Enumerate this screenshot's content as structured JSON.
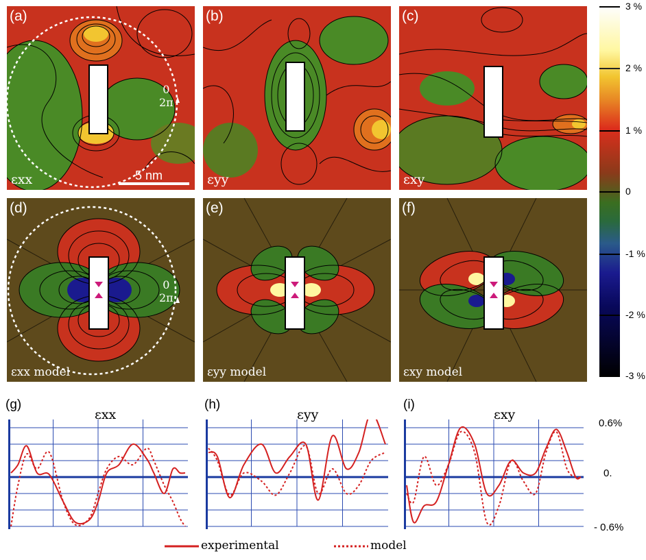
{
  "panels": [
    {
      "id": "a",
      "label": "(a)",
      "quantity": "εxx"
    },
    {
      "id": "b",
      "label": "(b)",
      "quantity": "εyy"
    },
    {
      "id": "c",
      "label": "(c)",
      "quantity": "εxy"
    },
    {
      "id": "d",
      "label": "(d)",
      "quantity": "εxx model"
    },
    {
      "id": "e",
      "label": "(e)",
      "quantity": "εyy model"
    },
    {
      "id": "f",
      "label": "(f)",
      "quantity": "εxy model"
    }
  ],
  "scale_bar": "5 nm",
  "ring_labels": {
    "zero": "0",
    "two_pi": "2π"
  },
  "colorbar": {
    "ticks": [
      "3 %",
      "2 %",
      "1 %",
      "0",
      "-1 %",
      "-2 %",
      "-3 %"
    ],
    "range": [
      -3,
      3
    ],
    "colors": {
      "max": "#ffffff",
      "high": "#f2c530",
      "mid_high": "#dc2e1c",
      "zero": "#5a4a1c",
      "mid_low": "#2a6a3c",
      "low": "#1a1a8e",
      "min": "#000000"
    }
  },
  "profiles": {
    "y_tick_labels": [
      "0.6%",
      "0.",
      "- 0.6%"
    ],
    "legend": {
      "experimental": "experimental",
      "model": "model"
    },
    "colors": {
      "line": "#d42020",
      "grid": "#2a4ab0",
      "axis": "#1a3aa0"
    }
  },
  "chart_data": [
    {
      "type": "line",
      "label": "(g)",
      "title": "εxx",
      "x": [
        0,
        0.04,
        0.09,
        0.15,
        0.22,
        0.3,
        0.37,
        0.45,
        0.5,
        0.55,
        0.62,
        0.7,
        0.78,
        0.82,
        0.88,
        0.93,
        0.97,
        1.0
      ],
      "ylim": [
        -0.6,
        0.6
      ],
      "series": [
        {
          "name": "experimental",
          "style": "solid",
          "values": [
            0.05,
            0.15,
            0.38,
            0.05,
            0.03,
            -0.3,
            -0.55,
            -0.52,
            -0.3,
            0.05,
            0.15,
            0.4,
            0.22,
            0.05,
            -0.2,
            0.1,
            0.05,
            0.05
          ]
        },
        {
          "name": "model",
          "style": "dotted",
          "values": [
            -0.6,
            -0.1,
            0.28,
            0.1,
            0.3,
            -0.3,
            -0.58,
            -0.5,
            -0.2,
            0.1,
            0.25,
            0.15,
            0.35,
            0.2,
            -0.1,
            -0.3,
            -0.5,
            -0.6
          ]
        }
      ]
    },
    {
      "type": "line",
      "label": "(h)",
      "title": "εyy",
      "x": [
        0,
        0.05,
        0.12,
        0.2,
        0.3,
        0.38,
        0.46,
        0.55,
        0.62,
        0.7,
        0.78,
        0.85,
        0.92,
        1.0
      ],
      "ylim": [
        -0.6,
        0.6
      ],
      "series": [
        {
          "name": "experimental",
          "style": "solid",
          "values": [
            0.3,
            0.25,
            -0.25,
            0.15,
            0.4,
            0.05,
            0.25,
            0.4,
            -0.28,
            0.5,
            0.1,
            0.3,
            0.78,
            0.4
          ]
        },
        {
          "name": "model",
          "style": "dotted",
          "values": [
            0.35,
            0.2,
            -0.22,
            0.05,
            -0.05,
            -0.22,
            0.05,
            0.38,
            -0.2,
            0.1,
            -0.2,
            -0.1,
            0.2,
            0.3
          ]
        }
      ]
    },
    {
      "type": "line",
      "label": "(i)",
      "title": "εxy",
      "x": [
        0,
        0.04,
        0.1,
        0.17,
        0.24,
        0.31,
        0.39,
        0.46,
        0.53,
        0.6,
        0.67,
        0.74,
        0.8,
        0.86,
        0.92,
        0.97,
        1.0
      ],
      "ylim": [
        -0.6,
        0.6
      ],
      "series": [
        {
          "name": "experimental",
          "style": "solid",
          "values": [
            -0.1,
            -0.55,
            -0.35,
            -0.3,
            0.15,
            0.6,
            0.4,
            -0.2,
            -0.1,
            0.2,
            0.05,
            0.05,
            0.35,
            0.58,
            0.3,
            0.0,
            0.0
          ]
        },
        {
          "name": "model",
          "style": "dotted",
          "values": [
            -0.2,
            -0.3,
            0.25,
            -0.1,
            0.15,
            0.55,
            0.3,
            -0.55,
            -0.35,
            0.2,
            -0.05,
            -0.2,
            0.3,
            0.55,
            0.1,
            0.0,
            0.0
          ]
        }
      ]
    }
  ]
}
